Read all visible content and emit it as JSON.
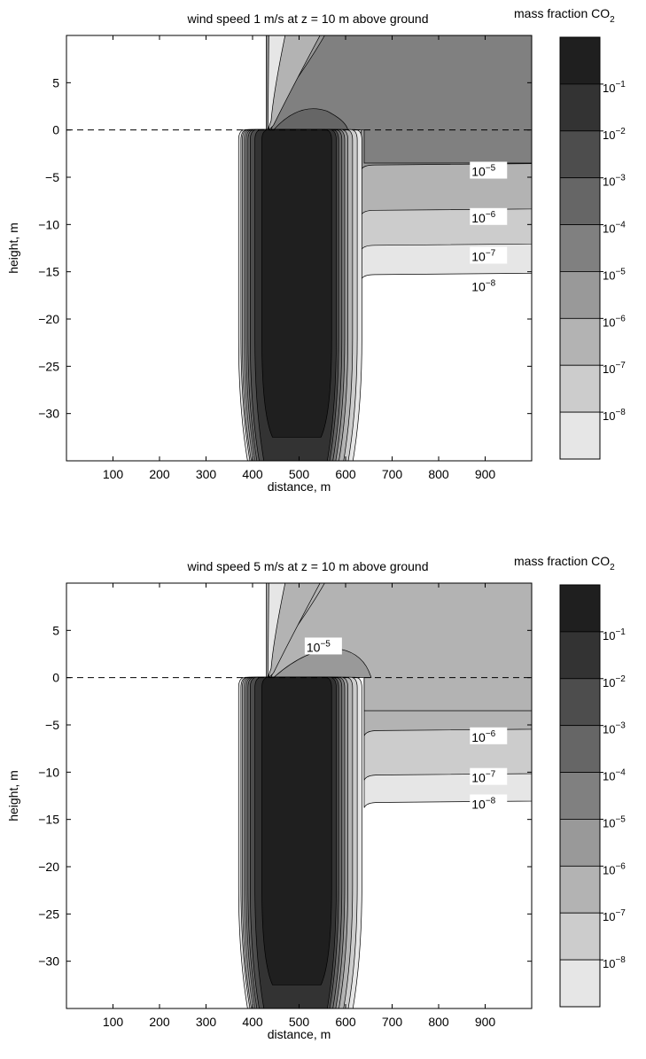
{
  "chart_data": [
    {
      "type": "contour",
      "title": "wind speed 1 m/s at z = 10 m above ground",
      "xlabel": "distance, m",
      "ylabel": "height, m",
      "xlim": [
        0,
        1000
      ],
      "ylim": [
        -35,
        10
      ],
      "x_ticks": [
        "100",
        "200",
        "300",
        "400",
        "500",
        "600",
        "700",
        "800",
        "900"
      ],
      "y_ticks": [
        "5",
        "0",
        "−5",
        "−10",
        "−15",
        "−20",
        "−25",
        "−30"
      ],
      "ground_line_y": 0,
      "colorbar": {
        "title_main": "mass fraction CO",
        "title_sub": "2",
        "levels": [
          {
            "base": "10",
            "exp": "−1"
          },
          {
            "base": "10",
            "exp": "−2"
          },
          {
            "base": "10",
            "exp": "−3"
          },
          {
            "base": "10",
            "exp": "−4"
          },
          {
            "base": "10",
            "exp": "−5"
          },
          {
            "base": "10",
            "exp": "−6"
          },
          {
            "base": "10",
            "exp": "−7"
          },
          {
            "base": "10",
            "exp": "−8"
          }
        ]
      },
      "contour_labels": [
        {
          "base": "10",
          "exp": "−5",
          "x": 930,
          "y": -4.3
        },
        {
          "base": "10",
          "exp": "−6",
          "x": 930,
          "y": -9.2
        },
        {
          "base": "10",
          "exp": "−7",
          "x": 930,
          "y": -13.3
        },
        {
          "base": "10",
          "exp": "−8",
          "x": 930,
          "y": -16.5
        }
      ],
      "plume_levels_y": {
        "1e-5": -3.7,
        "1e-6": -8.5,
        "1e-7": -12.2,
        "1e-8": -15.3
      }
    },
    {
      "type": "contour",
      "title": "wind speed 5 m/s at z = 10 m above ground",
      "xlabel": "distance, m",
      "ylabel": "height, m",
      "xlim": [
        0,
        1000
      ],
      "ylim": [
        -35,
        10
      ],
      "x_ticks": [
        "100",
        "200",
        "300",
        "400",
        "500",
        "600",
        "700",
        "800",
        "900"
      ],
      "y_ticks": [
        "5",
        "0",
        "−5",
        "−10",
        "−15",
        "−20",
        "−25",
        "−30"
      ],
      "ground_line_y": 0,
      "colorbar": {
        "title_main": "mass fraction CO",
        "title_sub": "2",
        "levels": [
          {
            "base": "10",
            "exp": "−1"
          },
          {
            "base": "10",
            "exp": "−2"
          },
          {
            "base": "10",
            "exp": "−3"
          },
          {
            "base": "10",
            "exp": "−4"
          },
          {
            "base": "10",
            "exp": "−5"
          },
          {
            "base": "10",
            "exp": "−6"
          },
          {
            "base": "10",
            "exp": "−7"
          },
          {
            "base": "10",
            "exp": "−8"
          }
        ]
      },
      "contour_labels": [
        {
          "base": "10",
          "exp": "−5",
          "x": 575,
          "y": 3.3
        },
        {
          "base": "10",
          "exp": "−6",
          "x": 930,
          "y": -6.2
        },
        {
          "base": "10",
          "exp": "−7",
          "x": 930,
          "y": -10.5
        },
        {
          "base": "10",
          "exp": "−8",
          "x": 930,
          "y": -13.3
        }
      ],
      "plume_levels_y": {
        "1e-6": -5.6,
        "1e-7": -10.3,
        "1e-8": -13.2
      }
    }
  ],
  "colors": [
    "#ffffff",
    "#e6e6e6",
    "#cccccc",
    "#b3b3b3",
    "#999999",
    "#808080",
    "#666666",
    "#4d4d4d",
    "#333333",
    "#1f1f1f"
  ]
}
